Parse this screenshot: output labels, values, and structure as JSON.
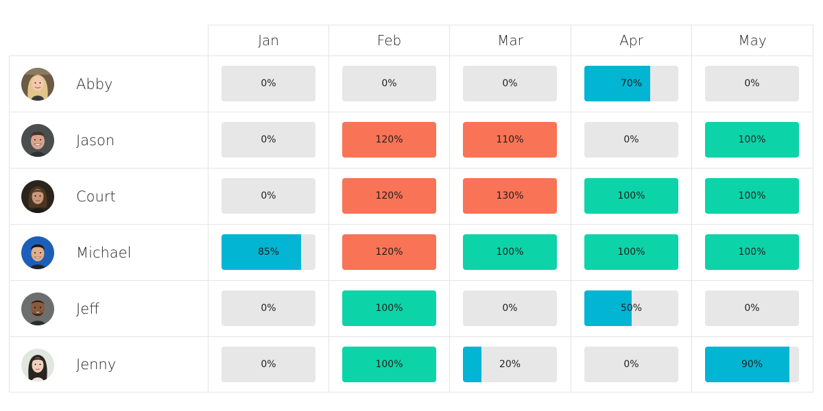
{
  "months": [
    "Jan",
    "Feb",
    "Mar",
    "Apr",
    "May"
  ],
  "colors": {
    "partial": "#02b5d3",
    "full": "#0cd4a8",
    "over": "#f97356",
    "empty": "#e7e7e7"
  },
  "people": [
    {
      "name": "Abby",
      "avatar": "avatar-blonde-woman",
      "values": [
        {
          "pct": 0,
          "label": "0%"
        },
        {
          "pct": 0,
          "label": "0%"
        },
        {
          "pct": 0,
          "label": "0%"
        },
        {
          "pct": 70,
          "label": "70%"
        },
        {
          "pct": 0,
          "label": "0%"
        }
      ]
    },
    {
      "name": "Jason",
      "avatar": "avatar-smiling-man",
      "values": [
        {
          "pct": 0,
          "label": "0%"
        },
        {
          "pct": 120,
          "label": "120%"
        },
        {
          "pct": 110,
          "label": "110%"
        },
        {
          "pct": 0,
          "label": "0%"
        },
        {
          "pct": 100,
          "label": "100%"
        }
      ]
    },
    {
      "name": "Court",
      "avatar": "avatar-long-hair-man",
      "values": [
        {
          "pct": 0,
          "label": "0%"
        },
        {
          "pct": 120,
          "label": "120%"
        },
        {
          "pct": 130,
          "label": "130%"
        },
        {
          "pct": 100,
          "label": "100%"
        },
        {
          "pct": 100,
          "label": "100%"
        }
      ]
    },
    {
      "name": "Michael",
      "avatar": "avatar-man-blue-background",
      "values": [
        {
          "pct": 85,
          "label": "85%"
        },
        {
          "pct": 120,
          "label": "120%"
        },
        {
          "pct": 100,
          "label": "100%"
        },
        {
          "pct": 100,
          "label": "100%"
        },
        {
          "pct": 100,
          "label": "100%"
        }
      ]
    },
    {
      "name": "Jeff",
      "avatar": "avatar-bald-man",
      "values": [
        {
          "pct": 0,
          "label": "0%"
        },
        {
          "pct": 100,
          "label": "100%"
        },
        {
          "pct": 0,
          "label": "0%"
        },
        {
          "pct": 50,
          "label": "50%"
        },
        {
          "pct": 0,
          "label": "0%"
        }
      ]
    },
    {
      "name": "Jenny",
      "avatar": "avatar-dark-hair-woman",
      "values": [
        {
          "pct": 0,
          "label": "0%"
        },
        {
          "pct": 100,
          "label": "100%"
        },
        {
          "pct": 20,
          "label": "20%"
        },
        {
          "pct": 0,
          "label": "0%"
        },
        {
          "pct": 90,
          "label": "90%"
        }
      ]
    }
  ]
}
